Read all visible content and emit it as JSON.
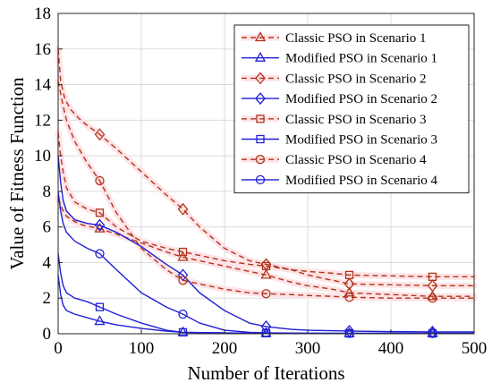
{
  "chart_data": {
    "type": "line",
    "title": "",
    "xlabel": "Number of Iterations",
    "ylabel": "Value of Fitness Function",
    "xlim": [
      0,
      500
    ],
    "ylim": [
      0,
      18
    ],
    "xticks": [
      0,
      100,
      200,
      300,
      400,
      500
    ],
    "yticks": [
      0,
      2,
      4,
      6,
      8,
      10,
      12,
      14,
      16,
      18
    ],
    "grid": true,
    "legend_position": "top-right",
    "colors": {
      "classic": "#b2341a",
      "modified": "#1f1fd6",
      "highlight": "#fde3e6"
    },
    "series": [
      {
        "name": "Classic PSO in Scenario 1",
        "style": "dashed",
        "marker": "triangle",
        "color": "#b2341a",
        "x": [
          0,
          5,
          10,
          20,
          30,
          50,
          70,
          100,
          130,
          150,
          180,
          200,
          230,
          250,
          280,
          300,
          330,
          350,
          400,
          450,
          500
        ],
        "y": [
          7.6,
          7.0,
          6.6,
          6.3,
          6.1,
          5.9,
          5.6,
          5.1,
          4.6,
          4.3,
          4.0,
          3.8,
          3.5,
          3.3,
          2.9,
          2.7,
          2.5,
          2.3,
          2.2,
          2.1,
          2.1
        ],
        "marker_x": [
          50,
          150,
          250,
          350,
          450
        ]
      },
      {
        "name": "Modified PSO in Scenario 1",
        "style": "solid",
        "marker": "triangle",
        "color": "#1f1fd6",
        "x": [
          0,
          3,
          6,
          10,
          20,
          35,
          50,
          70,
          100,
          130,
          150,
          200,
          250,
          300,
          350,
          400,
          450,
          500
        ],
        "y": [
          3.3,
          2.2,
          1.6,
          1.3,
          1.1,
          0.9,
          0.7,
          0.5,
          0.3,
          0.15,
          0.08,
          0.04,
          0.03,
          0.02,
          0.02,
          0.02,
          0.02,
          0.02
        ],
        "marker_x": [
          50,
          150,
          250,
          350,
          450
        ]
      },
      {
        "name": "Classic PSO in Scenario 2",
        "style": "dashed",
        "marker": "diamond",
        "color": "#b2341a",
        "x": [
          0,
          3,
          8,
          15,
          25,
          35,
          50,
          70,
          100,
          130,
          150,
          170,
          200,
          230,
          250,
          280,
          300,
          330,
          350,
          400,
          450,
          500
        ],
        "y": [
          16.0,
          14.2,
          13.2,
          12.6,
          12.1,
          11.7,
          11.2,
          10.4,
          9.1,
          7.8,
          7.0,
          6.0,
          4.8,
          4.1,
          3.9,
          3.6,
          3.3,
          3.0,
          2.8,
          2.75,
          2.7,
          2.7
        ],
        "marker_x": [
          50,
          150,
          250,
          350,
          450
        ]
      },
      {
        "name": "Modified PSO in Scenario 2",
        "style": "solid",
        "marker": "diamond",
        "color": "#1f1fd6",
        "x": [
          0,
          3,
          6,
          10,
          20,
          35,
          50,
          70,
          100,
          130,
          150,
          170,
          200,
          230,
          250,
          280,
          300,
          350,
          400,
          450,
          500
        ],
        "y": [
          10.0,
          8.5,
          7.5,
          6.9,
          6.4,
          6.2,
          6.1,
          5.7,
          4.9,
          3.9,
          3.3,
          2.3,
          1.3,
          0.6,
          0.4,
          0.25,
          0.2,
          0.15,
          0.12,
          0.1,
          0.1
        ],
        "marker_x": [
          50,
          150,
          250,
          350,
          450
        ]
      },
      {
        "name": "Classic PSO in Scenario 3",
        "style": "dashed",
        "marker": "square",
        "color": "#b2341a",
        "x": [
          0,
          3,
          6,
          10,
          20,
          35,
          50,
          70,
          100,
          130,
          150,
          180,
          200,
          230,
          250,
          280,
          300,
          330,
          350,
          400,
          450,
          500
        ],
        "y": [
          11.3,
          10.0,
          9.1,
          8.2,
          7.4,
          7.0,
          6.8,
          6.0,
          5.2,
          4.8,
          4.6,
          4.3,
          4.1,
          3.9,
          3.8,
          3.6,
          3.5,
          3.4,
          3.3,
          3.25,
          3.2,
          3.2
        ],
        "marker_x": [
          50,
          150,
          250,
          350,
          450
        ]
      },
      {
        "name": "Modified PSO in Scenario 3",
        "style": "solid",
        "marker": "square",
        "color": "#1f1fd6",
        "x": [
          0,
          3,
          6,
          10,
          20,
          35,
          50,
          70,
          100,
          130,
          150,
          200,
          250,
          300,
          350,
          400,
          450,
          500
        ],
        "y": [
          4.5,
          3.4,
          2.7,
          2.3,
          2.0,
          1.8,
          1.5,
          1.1,
          0.6,
          0.2,
          0.08,
          0.05,
          0.03,
          0.03,
          0.02,
          0.02,
          0.02,
          0.02
        ],
        "marker_x": [
          50,
          150,
          250,
          350,
          450
        ]
      },
      {
        "name": "Classic PSO in Scenario 4",
        "style": "dashed",
        "marker": "circle",
        "color": "#b2341a",
        "x": [
          0,
          3,
          6,
          10,
          20,
          35,
          50,
          70,
          100,
          130,
          150,
          180,
          200,
          230,
          250,
          280,
          300,
          330,
          350,
          400,
          450,
          500
        ],
        "y": [
          14.2,
          13.5,
          12.8,
          12.0,
          10.8,
          9.6,
          8.6,
          6.8,
          4.8,
          3.6,
          3.0,
          2.7,
          2.5,
          2.3,
          2.25,
          2.2,
          2.15,
          2.1,
          2.05,
          2.0,
          2.0,
          2.0
        ],
        "marker_x": [
          50,
          150,
          250,
          350,
          450
        ]
      },
      {
        "name": "Modified PSO in Scenario 4",
        "style": "solid",
        "marker": "circle",
        "color": "#1f1fd6",
        "x": [
          0,
          3,
          6,
          10,
          20,
          35,
          50,
          70,
          100,
          130,
          150,
          170,
          200,
          230,
          250,
          300,
          350,
          400,
          450,
          500
        ],
        "y": [
          8.0,
          6.9,
          6.2,
          5.7,
          5.2,
          4.8,
          4.5,
          3.6,
          2.3,
          1.5,
          1.1,
          0.6,
          0.2,
          0.08,
          0.05,
          0.03,
          0.02,
          0.02,
          0.02,
          0.02
        ],
        "marker_x": [
          50,
          150,
          250,
          350,
          450
        ]
      }
    ]
  }
}
